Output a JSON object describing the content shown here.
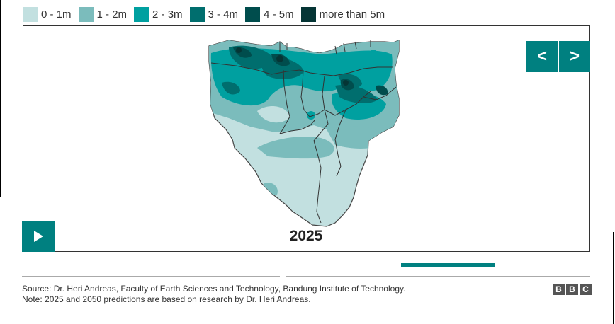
{
  "legend": {
    "items": [
      {
        "label": "0 - 1m",
        "color": "#c2e0e0"
      },
      {
        "label": "1 - 2m",
        "color": "#7bbcbc"
      },
      {
        "label": "2 - 3m",
        "color": "#00a0a0"
      },
      {
        "label": "3 - 4m",
        "color": "#006e6e"
      },
      {
        "label": "4 - 5m",
        "color": "#004d4d"
      },
      {
        "label": "more than 5m",
        "color": "#053535"
      }
    ]
  },
  "map": {
    "year": "2025",
    "region_outline_color": "#444444"
  },
  "controls": {
    "prev_label": "<",
    "next_label": ">",
    "play_icon": "play-icon",
    "accent_color": "#008080"
  },
  "footer": {
    "source": "Source: Dr. Heri Andreas, Faculty of Earth Sciences and Technology, Bandung Institute of Technology.",
    "note": "Note: 2025 and 2050 predictions are based on research by Dr. Heri Andreas.",
    "logo_letters": [
      "B",
      "B",
      "C"
    ]
  }
}
